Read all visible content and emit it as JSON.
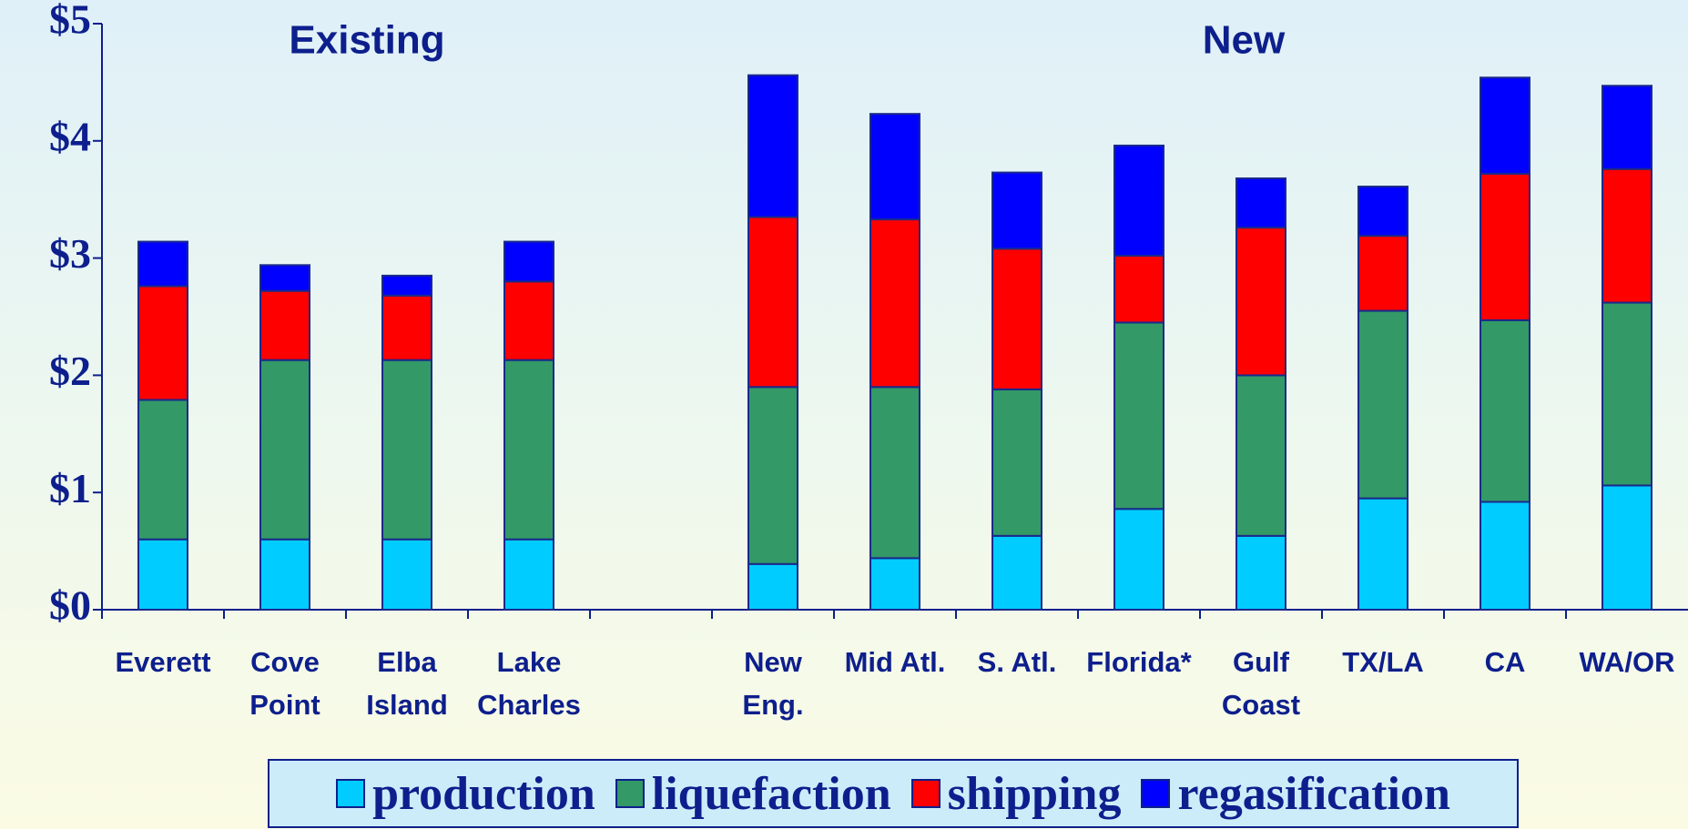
{
  "chart_data": {
    "type": "stacked_bar",
    "annotations": [
      "Existing",
      "New"
    ],
    "categories": [
      "Everett",
      "Cove\nPoint",
      "Elba\nIsland",
      "Lake\nCharles",
      null,
      "New\nEng.",
      "Mid Atl.",
      "S. Atl.",
      "Florida*",
      "Gulf\nCoast",
      "TX/LA",
      "CA",
      "WA/OR"
    ],
    "series": [
      {
        "name": "production",
        "color": "#00ccff",
        "values": [
          0.6,
          0.6,
          0.6,
          0.6,
          null,
          0.39,
          0.44,
          0.63,
          0.86,
          0.63,
          0.95,
          0.92,
          1.06
        ]
      },
      {
        "name": "liquefaction",
        "color": "#339966",
        "values": [
          1.19,
          1.53,
          1.53,
          1.53,
          null,
          1.51,
          1.46,
          1.25,
          1.59,
          1.37,
          1.6,
          1.55,
          1.56
        ]
      },
      {
        "name": "shipping",
        "color": "#ff0000",
        "values": [
          0.97,
          0.59,
          0.55,
          0.67,
          null,
          1.45,
          1.43,
          1.2,
          0.57,
          1.26,
          0.64,
          1.25,
          1.14
        ]
      },
      {
        "name": "regasification",
        "color": "#0000ff",
        "values": [
          0.38,
          0.22,
          0.17,
          0.34,
          null,
          1.21,
          0.9,
          0.65,
          0.94,
          0.42,
          0.42,
          0.82,
          0.71
        ]
      }
    ],
    "ylim": [
      0,
      5
    ],
    "yticks": [
      {
        "value": 0,
        "label": "$0"
      },
      {
        "value": 1,
        "label": "$1"
      },
      {
        "value": 2,
        "label": "$2"
      },
      {
        "value": 3,
        "label": "$3"
      },
      {
        "value": 4,
        "label": "$4"
      },
      {
        "value": 5,
        "label": "$5"
      }
    ],
    "grid": false,
    "legend": "bottom"
  }
}
